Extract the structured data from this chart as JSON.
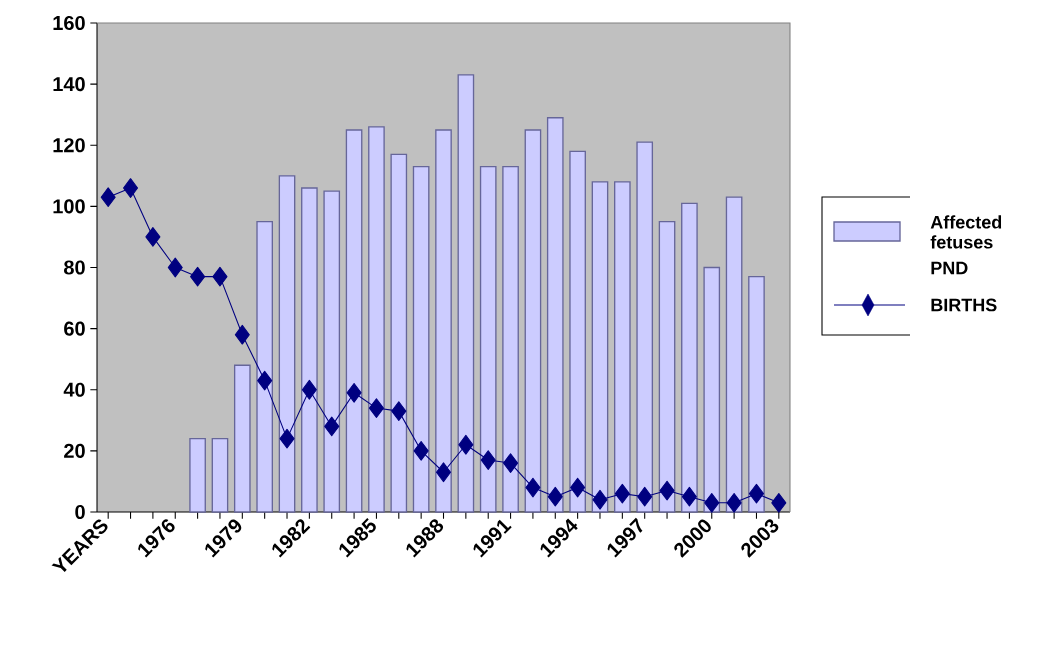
{
  "chart_data": {
    "type": "bar",
    "categories": [
      "YEARS",
      null,
      null,
      "1976",
      null,
      null,
      "1979",
      null,
      null,
      "1982",
      null,
      null,
      "1985",
      null,
      null,
      "1988",
      null,
      null,
      "1991",
      null,
      null,
      "1994",
      null,
      null,
      "1997",
      null,
      null,
      "2000",
      null,
      null,
      "2003"
    ],
    "series": [
      {
        "name": "Affected fetuses",
        "type": "bar",
        "color": "#ccccff",
        "values": [
          null,
          null,
          null,
          null,
          24,
          24,
          48,
          95,
          110,
          106,
          105,
          125,
          126,
          117,
          113,
          125,
          143,
          113,
          113,
          125,
          129,
          118,
          108,
          108,
          121,
          95,
          101,
          80,
          103,
          77,
          null
        ]
      },
      {
        "name": "BIRTHS",
        "type": "line",
        "color": "#000080",
        "marker": "diamond",
        "values": [
          103,
          106,
          90,
          80,
          77,
          77,
          58,
          43,
          24,
          40,
          28,
          39,
          34,
          33,
          20,
          13,
          22,
          17,
          16,
          8,
          5,
          8,
          4,
          6,
          5,
          7,
          5,
          3,
          3,
          6,
          3
        ]
      }
    ],
    "ylim": [
      0,
      160
    ],
    "yticks": [
      0,
      20,
      40,
      60,
      80,
      100,
      120,
      140,
      160
    ],
    "legend": "right",
    "annotations": [
      "PND"
    ]
  }
}
